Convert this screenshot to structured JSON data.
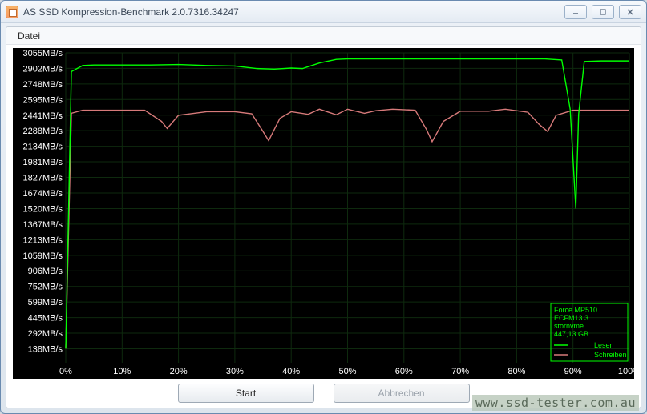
{
  "window": {
    "title": "AS SSD Kompression-Benchmark 2.0.7316.34247"
  },
  "menu": {
    "datei": "Datei"
  },
  "buttons": {
    "start": "Start",
    "abort": "Abbrechen"
  },
  "watermark": "www.ssd-tester.com.au",
  "legend": {
    "device": "Force MP510",
    "firmware": "ECFM13.3",
    "driver": "stornvme",
    "capacity": "447,13 GB",
    "read_label": "Lesen",
    "write_label": "Schreiben"
  },
  "chart": {
    "background": "#000000",
    "grid_color": "#0e2a0e",
    "axis_label_color": "#ffffff",
    "axis_label_fontsize": 11,
    "read_color": "#00ff00",
    "write_color": "#d77a7a",
    "legend_border_color": "#00ff00",
    "legend_text_color": "#00ff00",
    "y_axis": {
      "min": 0,
      "max": 3055,
      "labels": [
        "3055MB/s",
        "2902MB/s",
        "2748MB/s",
        "2595MB/s",
        "2441MB/s",
        "2288MB/s",
        "2134MB/s",
        "1981MB/s",
        "1827MB/s",
        "1674MB/s",
        "1520MB/s",
        "1367MB/s",
        "1213MB/s",
        "1059MB/s",
        "906MB/s",
        "752MB/s",
        "599MB/s",
        "445MB/s",
        "292MB/s",
        "138MB/s"
      ],
      "tick_values": [
        3055,
        2902,
        2748,
        2595,
        2441,
        2288,
        2134,
        1981,
        1827,
        1674,
        1520,
        1367,
        1213,
        1059,
        906,
        752,
        599,
        445,
        292,
        138
      ]
    },
    "x_axis": {
      "min": 0,
      "max": 100,
      "labels": [
        "0%",
        "10%",
        "20%",
        "30%",
        "40%",
        "50%",
        "60%",
        "70%",
        "80%",
        "90%",
        "100%"
      ],
      "tick_values": [
        0,
        10,
        20,
        30,
        40,
        50,
        60,
        70,
        80,
        90,
        100
      ]
    },
    "series_read": {
      "x": [
        0,
        1,
        3,
        5,
        10,
        15,
        20,
        25,
        30,
        34,
        37,
        40,
        42,
        45,
        48,
        50,
        55,
        60,
        65,
        70,
        75,
        80,
        85,
        88,
        89.5,
        90.5,
        91,
        92,
        95,
        100
      ],
      "y": [
        140,
        2870,
        2930,
        2935,
        2935,
        2935,
        2940,
        2930,
        2925,
        2900,
        2895,
        2905,
        2900,
        2955,
        2990,
        2995,
        2995,
        2995,
        2995,
        2995,
        2995,
        2995,
        2995,
        2985,
        2500,
        1520,
        2450,
        2970,
        2975,
        2975
      ]
    },
    "series_write": {
      "x": [
        0,
        1,
        3,
        5,
        10,
        14,
        17,
        18,
        20,
        25,
        30,
        33,
        35,
        36,
        38,
        40,
        43,
        45,
        48,
        50,
        53,
        55,
        58,
        62,
        64,
        65,
        67,
        70,
        75,
        78,
        82,
        84,
        85.5,
        87,
        90,
        95,
        100
      ],
      "y": [
        140,
        2460,
        2490,
        2490,
        2490,
        2490,
        2380,
        2310,
        2440,
        2475,
        2475,
        2455,
        2280,
        2190,
        2410,
        2475,
        2450,
        2500,
        2445,
        2500,
        2460,
        2485,
        2500,
        2490,
        2300,
        2180,
        2380,
        2480,
        2480,
        2500,
        2470,
        2350,
        2280,
        2440,
        2490,
        2490,
        2490
      ]
    }
  }
}
